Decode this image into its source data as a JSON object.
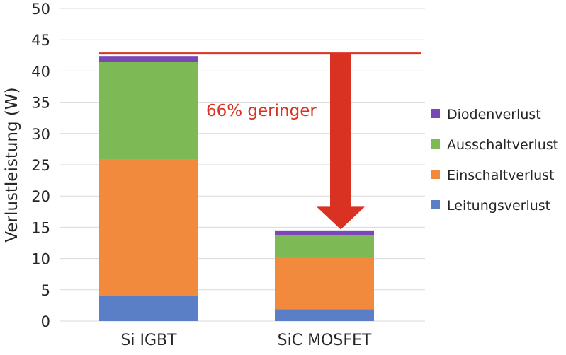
{
  "chart_data": {
    "type": "bar",
    "stacked": true,
    "categories": [
      "Si IGBT",
      "SiC MOSFET"
    ],
    "series": [
      {
        "name": "Leitungsverlust",
        "color": "#5b7fc6",
        "values": [
          4.0,
          1.9
        ]
      },
      {
        "name": "Einschaltverlust",
        "color": "#f18a3c",
        "values": [
          21.9,
          8.3
        ]
      },
      {
        "name": "Ausschaltverlust",
        "color": "#7db954",
        "values": [
          15.6,
          3.6
        ]
      },
      {
        "name": "Diodenverlust",
        "color": "#7a47b8",
        "values": [
          0.9,
          0.7
        ]
      }
    ],
    "ylabel": "Verlustleistung  (W)",
    "xlabel": "",
    "ylim": [
      0,
      50
    ],
    "yticks": [
      0,
      5,
      10,
      15,
      20,
      25,
      30,
      35,
      40,
      45,
      50
    ],
    "grid": true,
    "legend_position": "right",
    "legend_order": [
      "Diodenverlust",
      "Ausschaltverlust",
      "Einschaltverlust",
      "Leitungsverlust"
    ],
    "annotation": {
      "text": "66% geringer",
      "color": "#d93222",
      "reference_value": 42.8,
      "arrow_to_value": 15.0
    }
  }
}
